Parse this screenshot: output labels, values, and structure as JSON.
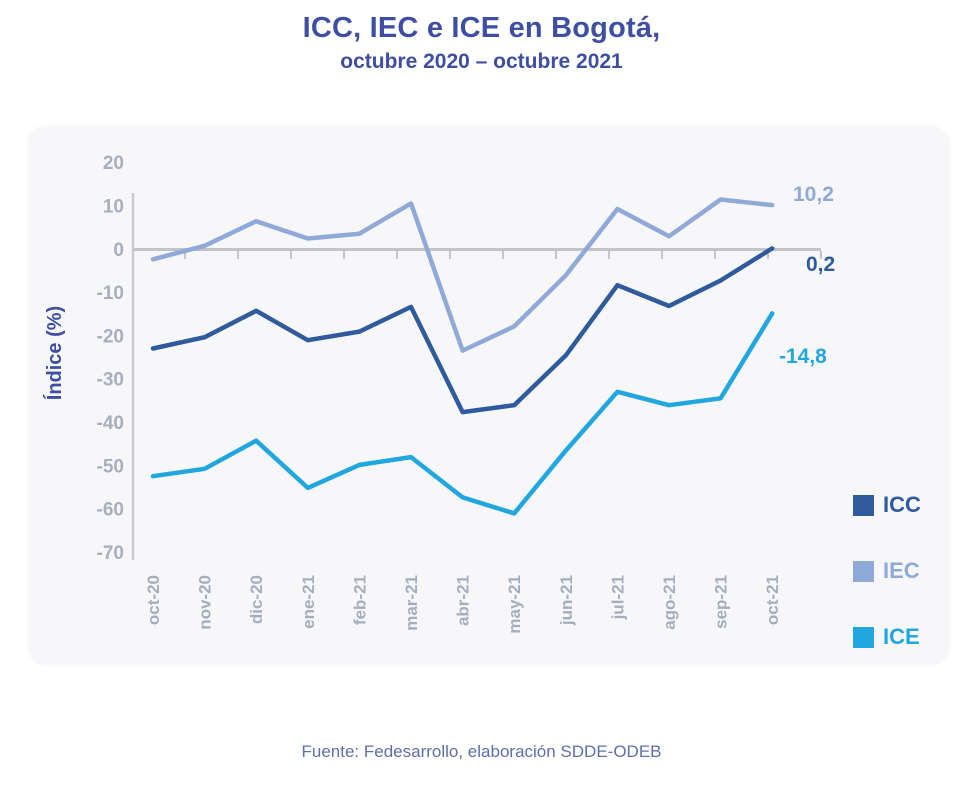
{
  "header": {
    "title": "ICC, IEC e ICE en Bogotá,",
    "subtitle": "octubre 2020 – octubre 2021"
  },
  "y_axis_title": "Índice  (%)",
  "footer": {
    "source": "Fuente: Fedesarrollo, elaboración SDDE-ODEB"
  },
  "legend": {
    "items": [
      {
        "label": "ICC",
        "color": "#2F5B9E"
      },
      {
        "label": "IEC",
        "color": "#8FA9D9"
      },
      {
        "label": "ICE",
        "color": "#21A6DF"
      }
    ]
  },
  "chart_data": {
    "type": "line",
    "title": "ICC, IEC e ICE en Bogotá, octubre 2020 – octubre 2021",
    "xlabel": "",
    "ylabel": "Índice  (%)",
    "categories": [
      "oct-20",
      "nov-20",
      "dic-20",
      "ene-21",
      "feb-21",
      "mar-21",
      "abr-21",
      "may-21",
      "jun-21",
      "jul-21",
      "ago-21",
      "sep-21",
      "oct-21"
    ],
    "series": [
      {
        "name": "IEC",
        "color": "#8FA9D9",
        "values": [
          -2.3,
          0.8,
          6.5,
          2.5,
          3.6,
          10.6,
          -23.4,
          -17.8,
          -6.0,
          9.3,
          3.0,
          11.5,
          10.2
        ],
        "end_label": "10,2"
      },
      {
        "name": "ICC",
        "color": "#2F5B9E",
        "values": [
          -22.9,
          -20.3,
          -14.2,
          -21.0,
          -19.0,
          -13.3,
          -37.6,
          -36.0,
          -24.5,
          -8.3,
          -13.1,
          -7.2,
          0.2
        ],
        "end_label": "0,2"
      },
      {
        "name": "ICE",
        "color": "#21A6DF",
        "values": [
          -52.4,
          -50.7,
          -44.2,
          -55.1,
          -49.8,
          -48.0,
          -57.3,
          -61.0,
          -46.5,
          -32.9,
          -36.0,
          -34.4,
          -14.8
        ],
        "end_label": "-14,8"
      }
    ],
    "y_ticks": [
      20,
      10,
      0,
      -10,
      -20,
      -30,
      -40,
      -50,
      -60,
      -70
    ],
    "ylim": [
      -70,
      20
    ],
    "grid": "zero-line-only",
    "legend_position": "right"
  }
}
